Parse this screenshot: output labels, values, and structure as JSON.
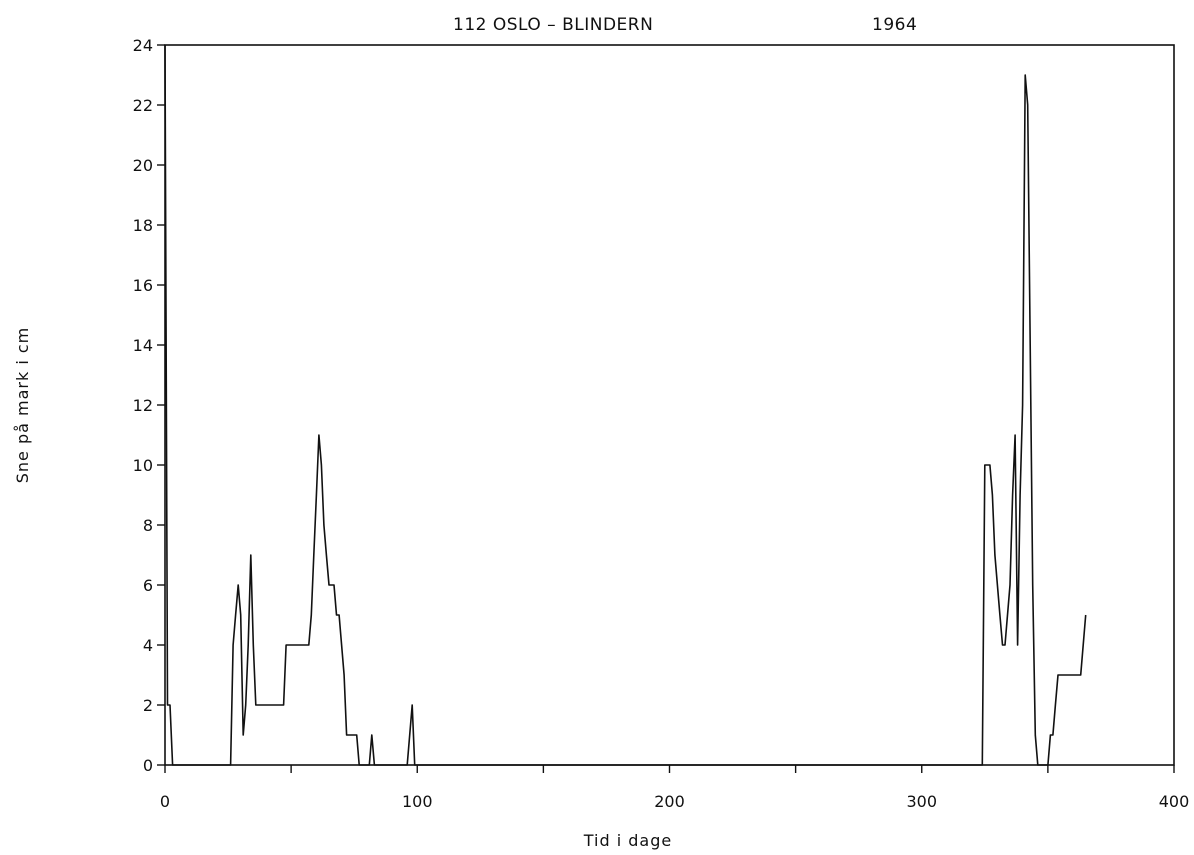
{
  "chart_data": {
    "type": "line",
    "title": "112 OSLO – BLINDERN",
    "subtitle": "1964",
    "xlabel": "Tid i dage",
    "ylabel": "Sne på mark i cm",
    "xlim": [
      0,
      400
    ],
    "ylim": [
      0,
      24
    ],
    "x_ticks": [
      0,
      100,
      200,
      300,
      400
    ],
    "y_ticks": [
      0,
      2,
      4,
      6,
      8,
      10,
      12,
      14,
      16,
      18,
      20,
      22,
      24
    ],
    "grid": false,
    "legend": "none",
    "line_color": "#111111",
    "series": [
      {
        "x": [
          0,
          1,
          2,
          3,
          4,
          26,
          27,
          28,
          29,
          30,
          31,
          32,
          33,
          34,
          35,
          36,
          40,
          46,
          47,
          48,
          52,
          56,
          57,
          58,
          59,
          60,
          61,
          62,
          63,
          64,
          65,
          66,
          67,
          68,
          69,
          70,
          71,
          72,
          73,
          74,
          75,
          76,
          77,
          81,
          82,
          83,
          96,
          97,
          98,
          99,
          324,
          325,
          326,
          327,
          328,
          329,
          330,
          331,
          332,
          333,
          334,
          335,
          336,
          337,
          338,
          339,
          340,
          341,
          342,
          343,
          344,
          345,
          346,
          350,
          351,
          352,
          353,
          354,
          355,
          356,
          357,
          360,
          362,
          363,
          364,
          365
        ],
        "values": [
          24,
          2,
          2,
          0,
          0,
          0,
          4,
          5,
          6,
          5,
          1,
          2,
          4,
          7,
          4,
          2,
          2,
          2,
          2,
          4,
          4,
          4,
          4,
          5,
          7,
          9,
          11,
          10,
          8,
          7,
          6,
          6,
          6,
          5,
          5,
          4,
          3,
          1,
          1,
          1,
          1,
          1,
          0,
          0,
          1,
          0,
          0,
          1,
          2,
          0,
          0,
          10,
          10,
          10,
          9,
          7,
          6,
          5,
          4,
          4,
          5,
          6,
          9,
          11,
          4,
          9,
          12,
          23,
          22,
          14,
          6,
          1,
          0,
          0,
          1,
          1,
          2,
          3,
          3,
          3,
          3,
          3,
          3,
          3,
          4,
          5
        ]
      }
    ]
  }
}
